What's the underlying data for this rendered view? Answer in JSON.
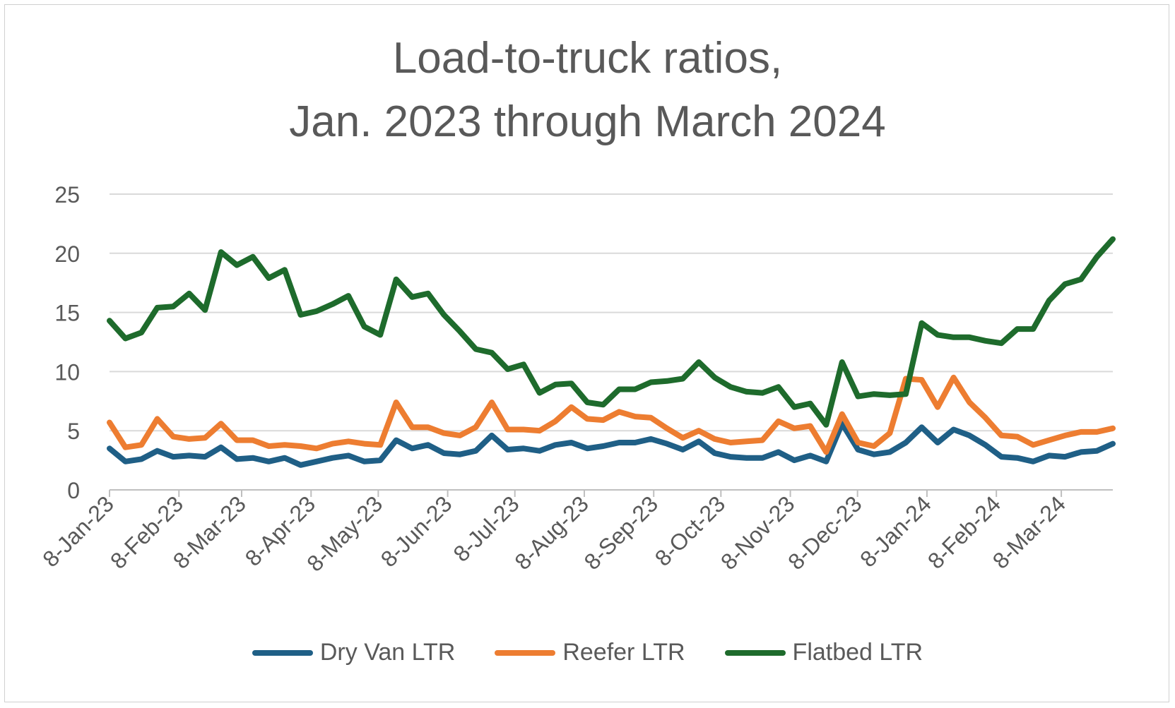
{
  "chart_data": {
    "type": "line",
    "title": "Load-to-truck ratios,",
    "subtitle": "Jan. 2023 through March 2024",
    "xlabel": "",
    "ylabel": "",
    "ylim": [
      0,
      25
    ],
    "yticks": [
      0,
      5,
      10,
      15,
      20,
      25
    ],
    "x_start": "2023-01-08",
    "x_end": "2024-03-31",
    "x_ticks": [
      {
        "label": "8-Jan-23",
        "date": "2023-01-08"
      },
      {
        "label": "8-Feb-23",
        "date": "2023-02-08"
      },
      {
        "label": "8-Mar-23",
        "date": "2023-03-08"
      },
      {
        "label": "8-Apr-23",
        "date": "2023-04-08"
      },
      {
        "label": "8-May-23",
        "date": "2023-05-08"
      },
      {
        "label": "8-Jun-23",
        "date": "2023-06-08"
      },
      {
        "label": "8-Jul-23",
        "date": "2023-07-08"
      },
      {
        "label": "8-Aug-23",
        "date": "2023-08-08"
      },
      {
        "label": "8-Sep-23",
        "date": "2023-09-08"
      },
      {
        "label": "8-Oct-23",
        "date": "2023-10-08"
      },
      {
        "label": "8-Nov-23",
        "date": "2023-11-08"
      },
      {
        "label": "8-Dec-23",
        "date": "2023-12-08"
      },
      {
        "label": "8-Jan-24",
        "date": "2024-01-08"
      },
      {
        "label": "8-Feb-24",
        "date": "2024-02-08"
      },
      {
        "label": "8-Mar-24",
        "date": "2024-03-08"
      }
    ],
    "grid": true,
    "legend_position": "bottom",
    "series": [
      {
        "name": "Dry Van LTR",
        "color": "#1f5f86",
        "values": [
          3.5,
          2.4,
          2.6,
          3.3,
          2.8,
          2.9,
          2.8,
          3.6,
          2.6,
          2.7,
          2.4,
          2.7,
          2.1,
          2.4,
          2.7,
          2.9,
          2.4,
          2.5,
          4.2,
          3.5,
          3.8,
          3.1,
          3.0,
          3.3,
          4.6,
          3.4,
          3.5,
          3.3,
          3.8,
          4.0,
          3.5,
          3.7,
          4.0,
          4.0,
          4.3,
          3.9,
          3.4,
          4.1,
          3.1,
          2.8,
          2.7,
          2.7,
          3.2,
          2.5,
          2.9,
          2.4,
          5.6,
          3.4,
          3.0,
          3.2,
          4.0,
          5.3,
          4.0,
          5.1,
          4.6,
          3.8,
          2.8,
          2.7,
          2.4,
          2.9,
          2.8,
          3.2,
          3.3,
          3.9
        ]
      },
      {
        "name": "Reefer LTR",
        "color": "#ed7d31",
        "values": [
          5.7,
          3.6,
          3.8,
          6.0,
          4.5,
          4.3,
          4.4,
          5.6,
          4.2,
          4.2,
          3.7,
          3.8,
          3.7,
          3.5,
          3.9,
          4.1,
          3.9,
          3.8,
          7.4,
          5.3,
          5.3,
          4.8,
          4.6,
          5.3,
          7.4,
          5.1,
          5.1,
          5.0,
          5.8,
          7.0,
          6.0,
          5.9,
          6.6,
          6.2,
          6.1,
          5.2,
          4.4,
          5.0,
          4.3,
          4.0,
          4.1,
          4.2,
          5.8,
          5.2,
          5.4,
          3.2,
          6.4,
          4.0,
          3.7,
          4.8,
          9.4,
          9.3,
          7.0,
          9.5,
          7.4,
          6.1,
          4.6,
          4.5,
          3.8,
          4.2,
          4.6,
          4.9,
          4.9,
          5.2
        ]
      },
      {
        "name": "Flatbed LTR",
        "color": "#1e6b2c",
        "values": [
          14.3,
          12.8,
          13.3,
          15.4,
          15.5,
          16.6,
          15.2,
          20.1,
          19.0,
          19.7,
          17.9,
          18.6,
          14.8,
          15.1,
          15.7,
          16.4,
          13.8,
          13.1,
          17.8,
          16.3,
          16.6,
          14.8,
          13.4,
          11.9,
          11.6,
          10.2,
          10.6,
          8.2,
          8.9,
          9.0,
          7.4,
          7.2,
          8.5,
          8.5,
          9.1,
          9.2,
          9.4,
          10.8,
          9.5,
          8.7,
          8.3,
          8.2,
          8.7,
          7.0,
          7.3,
          5.5,
          10.8,
          7.9,
          8.1,
          8.0,
          8.1,
          14.1,
          13.1,
          12.9,
          12.9,
          12.6,
          12.4,
          13.6,
          13.6,
          16.0,
          17.4,
          17.8,
          19.7,
          21.2
        ]
      }
    ]
  }
}
